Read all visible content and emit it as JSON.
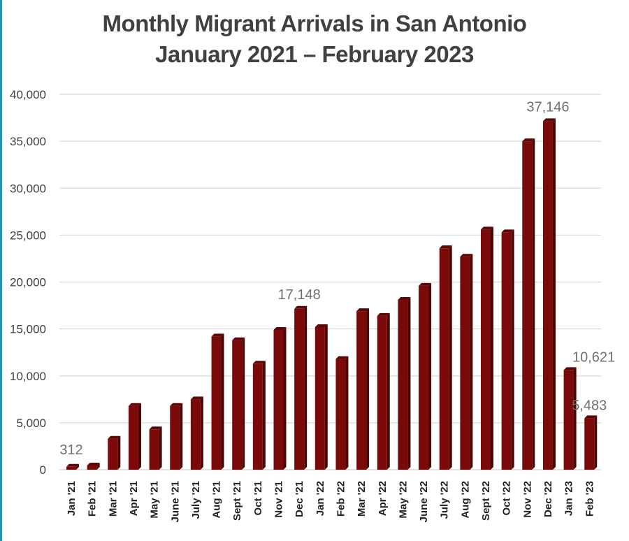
{
  "chart_data": {
    "type": "bar",
    "title": "Monthly Migrant Arrivals in San Antonio",
    "subtitle": "January 2021 – February 2023",
    "xlabel": "",
    "ylabel": "",
    "ylim": [
      0,
      40000
    ],
    "yticks": [
      0,
      5000,
      10000,
      15000,
      20000,
      25000,
      30000,
      35000,
      40000
    ],
    "ytick_labels": [
      "0",
      "5,000",
      "10,000",
      "15,000",
      "20,000",
      "25,000",
      "30,000",
      "35,000",
      "40,000"
    ],
    "grid": true,
    "legend": "none",
    "bar_color": "#7a0a0a",
    "bar_side_color": "#4a0505",
    "categories": [
      "Jan '21",
      "Feb '21",
      "Mar '21",
      "Apr '21",
      "May '21",
      "June '21",
      "July '21",
      "Aug '21",
      "Sept '21",
      "Oct '21",
      "Nov '21",
      "Dec '21",
      "Jan '22",
      "Feb '22",
      "Mar '22",
      "Apr '22",
      "May '22",
      "June '22",
      "July '22",
      "Aug '22",
      "Sept '22",
      "Oct '22",
      "Nov '22",
      "Dec '22",
      "Jan '23",
      "Feb '23"
    ],
    "values": [
      312,
      450,
      3300,
      6800,
      4300,
      6800,
      7500,
      14200,
      13800,
      11300,
      14900,
      17148,
      15200,
      11800,
      16900,
      16400,
      18100,
      19600,
      23600,
      22700,
      25600,
      25300,
      35000,
      37146,
      10621,
      5483
    ],
    "data_labels": [
      {
        "index": 0,
        "text": "312"
      },
      {
        "index": 11,
        "text": "17,148"
      },
      {
        "index": 23,
        "text": "37,146"
      },
      {
        "index": 24,
        "text": "10,621"
      },
      {
        "index": 25,
        "text": "5,483"
      }
    ]
  }
}
